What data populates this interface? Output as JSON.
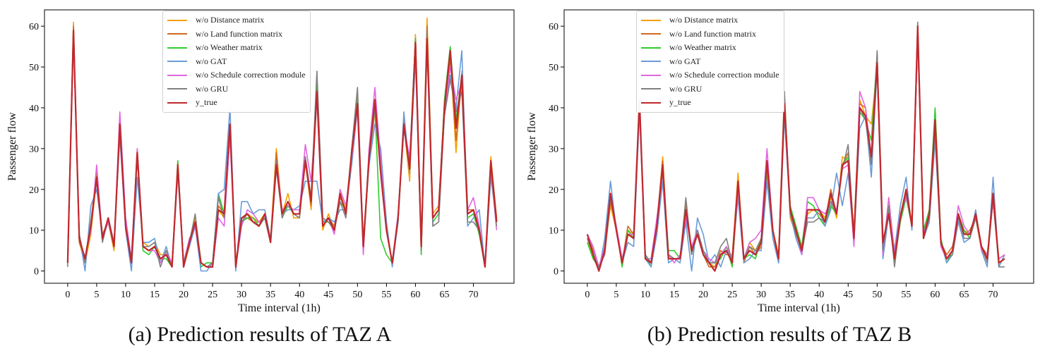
{
  "chart_data": [
    {
      "type": "line",
      "caption": "(a) Prediction results of TAZ A",
      "xlabel": "Time interval (1h)",
      "ylabel": "Passenger flow",
      "xlim": [
        -4,
        77
      ],
      "ylim": [
        -3,
        64
      ],
      "xticks": [
        0,
        5,
        10,
        15,
        20,
        25,
        30,
        35,
        40,
        45,
        50,
        55,
        60,
        65,
        70
      ],
      "yticks": [
        0,
        10,
        20,
        30,
        40,
        50,
        60
      ],
      "legend_position": "top-center",
      "series": [
        {
          "name": "w/o Distance matrix",
          "color": "#f5a000",
          "values": [
            2,
            61,
            7,
            2,
            9,
            23,
            9,
            12,
            5,
            35,
            10,
            2,
            30,
            7,
            6,
            7,
            4,
            4,
            1,
            27,
            1,
            6,
            13,
            2,
            1,
            1,
            15,
            13,
            35,
            2,
            12,
            14,
            13,
            12,
            14,
            8,
            30,
            14,
            19,
            13,
            13,
            27,
            15,
            45,
            10,
            14,
            10,
            19,
            15,
            30,
            43,
            5,
            27,
            39,
            25,
            11,
            2,
            13,
            36,
            22,
            58,
            6,
            62,
            14,
            16,
            40,
            53,
            29,
            49,
            14,
            15,
            10,
            1,
            28,
            13
          ]
        },
        {
          "name": "w/o Land function matrix",
          "color": "#d2691e",
          "values": [
            3,
            60,
            7,
            3,
            12,
            24,
            8,
            13,
            6,
            36,
            12,
            2,
            29,
            6,
            5,
            6,
            3,
            4,
            1,
            26,
            1,
            7,
            12,
            2,
            1,
            1,
            16,
            14,
            36,
            1,
            13,
            13,
            12,
            12,
            13,
            7,
            29,
            14,
            17,
            14,
            14,
            28,
            16,
            44,
            11,
            13,
            11,
            18,
            15,
            29,
            42,
            6,
            28,
            40,
            26,
            10,
            2,
            13,
            37,
            26,
            57,
            6,
            60,
            13,
            15,
            41,
            52,
            32,
            47,
            15,
            15,
            11,
            1,
            27,
            13
          ]
        },
        {
          "name": "w/o Weather matrix",
          "color": "#2ecc2e",
          "values": [
            2,
            59,
            8,
            3,
            12,
            22,
            9,
            12,
            6,
            35,
            11,
            2,
            28,
            5,
            4,
            6,
            3,
            3,
            1,
            27,
            1,
            7,
            12,
            1,
            2,
            2,
            19,
            14,
            35,
            1,
            12,
            13,
            13,
            11,
            13,
            7,
            26,
            13,
            16,
            14,
            14,
            27,
            17,
            46,
            12,
            12,
            10,
            17,
            15,
            29,
            42,
            6,
            29,
            40,
            8,
            4,
            2,
            12,
            36,
            27,
            57,
            4,
            58,
            12,
            14,
            42,
            55,
            37,
            48,
            13,
            14,
            9,
            1,
            26,
            12
          ]
        },
        {
          "name": "w/o GAT",
          "color": "#6a9bd8",
          "values": [
            2,
            58,
            9,
            0,
            16,
            20,
            9,
            12,
            7,
            33,
            10,
            0,
            23,
            7,
            7,
            8,
            2,
            6,
            1,
            24,
            2,
            6,
            11,
            0,
            0,
            2,
            19,
            20,
            40,
            0,
            17,
            17,
            14,
            15,
            15,
            8,
            25,
            14,
            15,
            15,
            16,
            22,
            22,
            22,
            12,
            13,
            12,
            15,
            15,
            26,
            40,
            8,
            26,
            36,
            30,
            12,
            1,
            12,
            39,
            24,
            52,
            6,
            55,
            11,
            12,
            40,
            48,
            40,
            54,
            11,
            13,
            15,
            1,
            23,
            12
          ]
        },
        {
          "name": "w/o Schedule correction module",
          "color": "#e066e0",
          "values": [
            3,
            58,
            8,
            3,
            10,
            26,
            8,
            12,
            6,
            39,
            13,
            3,
            30,
            6,
            5,
            5,
            2,
            5,
            2,
            25,
            2,
            8,
            11,
            2,
            1,
            1,
            13,
            11,
            33,
            1,
            11,
            15,
            14,
            12,
            13,
            7,
            27,
            15,
            16,
            15,
            15,
            31,
            22,
            42,
            11,
            13,
            9,
            20,
            16,
            28,
            40,
            4,
            30,
            45,
            27,
            10,
            2,
            14,
            35,
            28,
            54,
            6,
            58,
            13,
            15,
            38,
            50,
            42,
            46,
            15,
            18,
            11,
            1,
            25,
            10
          ]
        },
        {
          "name": "w/o GRU",
          "color": "#808080",
          "values": [
            1,
            59,
            9,
            2,
            12,
            22,
            7,
            13,
            7,
            34,
            11,
            3,
            28,
            6,
            6,
            7,
            1,
            5,
            1,
            25,
            2,
            7,
            14,
            2,
            1,
            2,
            18,
            13,
            35,
            1,
            12,
            14,
            12,
            11,
            13,
            7,
            27,
            13,
            17,
            14,
            13,
            28,
            18,
            49,
            13,
            12,
            10,
            17,
            13,
            30,
            45,
            6,
            27,
            40,
            25,
            10,
            2,
            13,
            35,
            25,
            54,
            5,
            59,
            11,
            12,
            38,
            47,
            39,
            44,
            12,
            12,
            10,
            1,
            25,
            11
          ]
        },
        {
          "name": "y_true",
          "color": "#c0282d",
          "values": [
            2,
            59,
            8,
            3,
            11,
            23,
            8,
            13,
            6,
            36,
            11,
            2,
            29,
            6,
            5,
            6,
            3,
            4,
            1,
            26,
            1,
            7,
            12,
            2,
            1,
            1,
            15,
            14,
            36,
            1,
            13,
            14,
            12,
            11,
            14,
            7,
            26,
            14,
            17,
            14,
            14,
            27,
            17,
            44,
            11,
            13,
            10,
            19,
            14,
            29,
            41,
            6,
            28,
            42,
            24,
            10,
            2,
            13,
            36,
            25,
            56,
            6,
            57,
            13,
            15,
            40,
            54,
            35,
            48,
            14,
            15,
            10,
            1,
            27,
            12
          ]
        }
      ]
    },
    {
      "type": "line",
      "caption": "(b) Prediction results of TAZ B",
      "xlabel": "Time interval (1h)",
      "ylabel": "Passenger flow",
      "xlim": [
        -4,
        77
      ],
      "ylim": [
        -3,
        64
      ],
      "xticks": [
        0,
        5,
        10,
        15,
        20,
        25,
        30,
        35,
        40,
        45,
        50,
        55,
        60,
        65,
        70
      ],
      "yticks": [
        0,
        10,
        20,
        30,
        40,
        50,
        60
      ],
      "legend_position": "top-center",
      "series": [
        {
          "name": "w/o Distance matrix",
          "color": "#f5a000",
          "values": [
            8,
            3,
            1,
            5,
            16,
            10,
            2,
            10,
            9,
            40,
            4,
            2,
            11,
            28,
            4,
            3,
            3,
            16,
            5,
            10,
            4,
            2,
            1,
            4,
            5,
            3,
            24,
            3,
            7,
            5,
            7,
            26,
            10,
            4,
            44,
            13,
            9,
            5,
            14,
            15,
            15,
            13,
            18,
            13,
            28,
            27,
            10,
            42,
            38,
            36,
            50,
            4,
            18,
            4,
            14,
            20,
            12,
            57,
            9,
            15,
            36,
            6,
            3,
            5,
            14,
            10,
            9,
            13,
            5,
            3,
            18,
            3,
            4
          ]
        },
        {
          "name": "w/o Land function matrix",
          "color": "#d2691e",
          "values": [
            9,
            5,
            1,
            4,
            17,
            11,
            2,
            11,
            9,
            42,
            3,
            2,
            12,
            27,
            3,
            3,
            3,
            17,
            5,
            9,
            4,
            1,
            1,
            5,
            4,
            4,
            22,
            2,
            6,
            4,
            6,
            25,
            10,
            3,
            42,
            16,
            10,
            5,
            15,
            15,
            14,
            12,
            20,
            14,
            26,
            29,
            9,
            41,
            40,
            27,
            52,
            5,
            16,
            5,
            13,
            19,
            11,
            59,
            9,
            14,
            35,
            7,
            4,
            6,
            13,
            9,
            10,
            13,
            6,
            4,
            17,
            2,
            3
          ]
        },
        {
          "name": "w/o Weather matrix",
          "color": "#2ecc2e",
          "values": [
            7,
            3,
            1,
            6,
            18,
            11,
            1,
            10,
            8,
            41,
            4,
            1,
            12,
            25,
            5,
            5,
            3,
            15,
            4,
            9,
            5,
            2,
            2,
            3,
            6,
            1,
            20,
            3,
            4,
            3,
            8,
            24,
            10,
            2,
            40,
            16,
            11,
            6,
            17,
            16,
            13,
            11,
            16,
            14,
            26,
            28,
            8,
            39,
            37,
            32,
            53,
            5,
            15,
            2,
            12,
            18,
            11,
            58,
            10,
            15,
            40,
            8,
            2,
            5,
            14,
            10,
            8,
            14,
            6,
            3,
            19,
            2,
            3
          ]
        },
        {
          "name": "w/o GAT",
          "color": "#6a9bd8",
          "values": [
            8,
            6,
            0,
            8,
            22,
            10,
            2,
            7,
            6,
            39,
            3,
            1,
            9,
            22,
            2,
            3,
            2,
            12,
            0,
            13,
            9,
            2,
            4,
            1,
            5,
            3,
            18,
            2,
            3,
            5,
            5,
            22,
            8,
            2,
            38,
            14,
            8,
            4,
            13,
            13,
            15,
            11,
            15,
            24,
            16,
            24,
            7,
            35,
            38,
            23,
            50,
            3,
            14,
            5,
            16,
            23,
            10,
            58,
            8,
            12,
            32,
            7,
            2,
            4,
            12,
            7,
            8,
            15,
            5,
            1,
            23,
            1,
            4
          ]
        },
        {
          "name": "w/o Schedule correction module",
          "color": "#e066e0",
          "values": [
            9,
            6,
            1,
            6,
            19,
            11,
            3,
            9,
            9,
            40,
            3,
            3,
            13,
            24,
            4,
            2,
            4,
            13,
            6,
            10,
            5,
            3,
            2,
            4,
            6,
            3,
            20,
            3,
            7,
            8,
            10,
            30,
            10,
            3,
            40,
            15,
            10,
            4,
            18,
            18,
            15,
            14,
            17,
            15,
            25,
            26,
            6,
            44,
            40,
            28,
            53,
            4,
            18,
            4,
            14,
            18,
            12,
            57,
            9,
            14,
            35,
            6,
            3,
            5,
            16,
            11,
            9,
            14,
            5,
            4,
            17,
            3,
            4
          ]
        },
        {
          "name": "w/o GRU",
          "color": "#808080",
          "values": [
            8,
            4,
            1,
            4,
            18,
            10,
            2,
            9,
            8,
            42,
            4,
            2,
            11,
            25,
            4,
            3,
            3,
            18,
            4,
            10,
            5,
            2,
            2,
            6,
            8,
            2,
            22,
            3,
            6,
            5,
            8,
            26,
            10,
            3,
            44,
            14,
            9,
            5,
            12,
            12,
            13,
            12,
            17,
            14,
            25,
            31,
            8,
            40,
            37,
            26,
            54,
            5,
            16,
            1,
            13,
            19,
            11,
            61,
            8,
            13,
            34,
            7,
            3,
            4,
            13,
            8,
            8,
            13,
            6,
            2,
            18,
            1,
            1
          ]
        },
        {
          "name": "y_true",
          "color": "#c0282d",
          "values": [
            9,
            4,
            0,
            5,
            19,
            10,
            2,
            9,
            8,
            42,
            3,
            2,
            11,
            26,
            3,
            3,
            3,
            15,
            5,
            9,
            4,
            2,
            0,
            4,
            5,
            2,
            22,
            3,
            5,
            4,
            7,
            27,
            10,
            3,
            41,
            15,
            10,
            5,
            15,
            15,
            15,
            12,
            19,
            14,
            26,
            27,
            8,
            40,
            38,
            28,
            51,
            7,
            14,
            3,
            13,
            20,
            11,
            60,
            8,
            14,
            37,
            7,
            3,
            5,
            14,
            9,
            9,
            14,
            6,
            3,
            19,
            2,
            3
          ]
        }
      ]
    }
  ]
}
